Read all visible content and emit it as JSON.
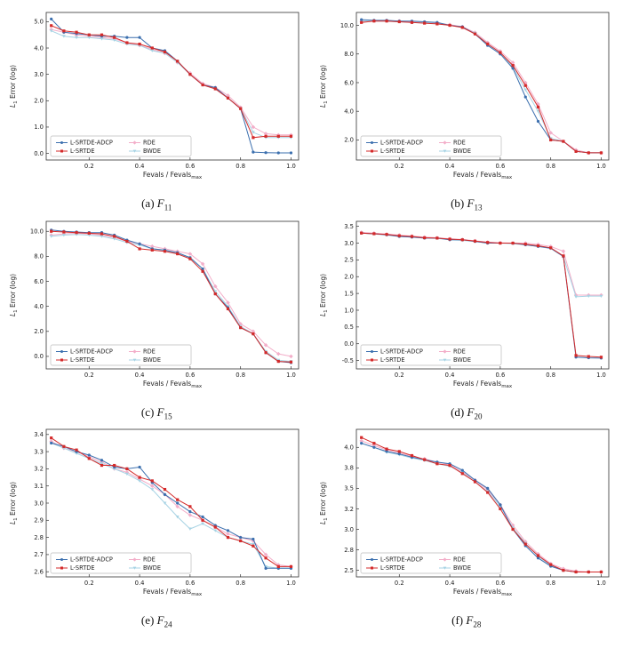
{
  "page": {
    "background": "#ffffff"
  },
  "chart_data": [
    {
      "type": "line",
      "caption": {
        "prefix": "(a)",
        "letter": "F",
        "sub": "11"
      },
      "xlabel": {
        "main": "Fevals / Fevals",
        "sub": "max"
      },
      "ylabel": {
        "pre": "L",
        "sub": "1",
        "post": " Error (log)"
      },
      "xlim": [
        0.03,
        1.03
      ],
      "ylim": [
        -0.25,
        5.35
      ],
      "xticks": [
        0.2,
        0.4,
        0.6,
        0.8,
        1.0
      ],
      "ytick_vals": [
        0.0,
        1.0,
        2.0,
        3.0,
        4.0,
        5.0
      ],
      "ytick_labels": [
        "0.0",
        "1.0",
        "2.0",
        "3.0",
        "4.0",
        "5.0"
      ],
      "x": [
        0.05,
        0.1,
        0.15,
        0.2,
        0.25,
        0.3,
        0.35,
        0.4,
        0.45,
        0.5,
        0.55,
        0.6,
        0.65,
        0.7,
        0.75,
        0.8,
        0.85,
        0.9,
        0.95,
        1.0
      ],
      "legend_pos": "lower-left",
      "draw_order": [
        2,
        3,
        0,
        1
      ],
      "series": [
        {
          "name": "L-SRTDE-ADCP",
          "color": "#3b6fae",
          "marker": "circle",
          "values": [
            5.1,
            4.6,
            4.55,
            4.5,
            4.45,
            4.45,
            4.4,
            4.4,
            4.0,
            3.9,
            3.5,
            3.0,
            2.6,
            2.5,
            2.1,
            1.7,
            0.05,
            0.03,
            0.02,
            0.02
          ]
        },
        {
          "name": "L-SRTDE",
          "color": "#d42a2a",
          "marker": "square",
          "values": [
            4.85,
            4.65,
            4.6,
            4.5,
            4.5,
            4.4,
            4.2,
            4.15,
            4.0,
            3.85,
            3.5,
            3.0,
            2.6,
            2.45,
            2.1,
            1.7,
            0.6,
            0.65,
            0.65,
            0.65
          ]
        },
        {
          "name": "RDE",
          "color": "#f3aec9",
          "marker": "diamond",
          "values": [
            4.7,
            4.6,
            4.5,
            4.45,
            4.4,
            4.35,
            4.2,
            4.1,
            3.95,
            3.8,
            3.45,
            3.05,
            2.65,
            2.5,
            2.2,
            1.75,
            1.0,
            0.75,
            0.7,
            0.7
          ]
        },
        {
          "name": "BWDE",
          "color": "#a7d3e4",
          "marker": "triangle",
          "values": [
            4.65,
            4.45,
            4.4,
            4.4,
            4.35,
            4.3,
            4.15,
            4.1,
            3.9,
            3.8,
            3.45,
            3.0,
            2.6,
            2.45,
            2.1,
            1.7,
            0.8,
            0.6,
            0.6,
            0.6
          ]
        }
      ]
    },
    {
      "type": "line",
      "caption": {
        "prefix": "(b)",
        "letter": "F",
        "sub": "13"
      },
      "xlabel": {
        "main": "Fevals / Fevals",
        "sub": "max"
      },
      "ylabel": {
        "pre": "L",
        "sub": "1",
        "post": " Error (log)"
      },
      "xlim": [
        0.03,
        1.03
      ],
      "ylim": [
        0.6,
        10.9
      ],
      "xticks": [
        0.2,
        0.4,
        0.6,
        0.8,
        1.0
      ],
      "ytick_vals": [
        2.0,
        4.0,
        6.0,
        8.0,
        10.0
      ],
      "ytick_labels": [
        "2.0",
        "4.0",
        "6.0",
        "8.0",
        "10.0"
      ],
      "x": [
        0.05,
        0.1,
        0.15,
        0.2,
        0.25,
        0.3,
        0.35,
        0.4,
        0.45,
        0.5,
        0.55,
        0.6,
        0.65,
        0.7,
        0.75,
        0.8,
        0.85,
        0.9,
        0.95,
        1.0
      ],
      "legend_pos": "lower-left",
      "draw_order": [
        2,
        3,
        0,
        1
      ],
      "series": [
        {
          "name": "L-SRTDE-ADCP",
          "color": "#3b6fae",
          "marker": "circle",
          "values": [
            10.4,
            10.35,
            10.35,
            10.3,
            10.3,
            10.25,
            10.2,
            10.0,
            9.9,
            9.4,
            8.6,
            8.0,
            7.0,
            5.0,
            3.3,
            2.0,
            1.9,
            1.2,
            1.1,
            1.1
          ]
        },
        {
          "name": "L-SRTDE",
          "color": "#d42a2a",
          "marker": "square",
          "values": [
            10.2,
            10.3,
            10.3,
            10.25,
            10.2,
            10.15,
            10.1,
            10.0,
            9.85,
            9.4,
            8.7,
            8.1,
            7.2,
            5.8,
            4.3,
            2.0,
            1.9,
            1.2,
            1.1,
            1.1
          ]
        },
        {
          "name": "RDE",
          "color": "#f3aec9",
          "marker": "diamond",
          "values": [
            10.25,
            10.3,
            10.3,
            10.3,
            10.25,
            10.2,
            10.15,
            10.05,
            9.9,
            9.5,
            8.8,
            8.2,
            7.4,
            6.0,
            4.5,
            2.5,
            1.9,
            1.3,
            1.1,
            1.1
          ]
        },
        {
          "name": "BWDE",
          "color": "#a7d3e4",
          "marker": "triangle",
          "values": [
            10.3,
            10.3,
            10.3,
            10.25,
            10.2,
            10.2,
            10.1,
            10.0,
            9.85,
            9.45,
            8.7,
            8.1,
            7.1,
            5.5,
            4.0,
            2.1,
            1.9,
            1.2,
            1.1,
            1.1
          ]
        }
      ]
    },
    {
      "type": "line",
      "caption": {
        "prefix": "(c)",
        "letter": "F",
        "sub": "15"
      },
      "xlabel": {
        "main": "Fevals / Fevals",
        "sub": "max"
      },
      "ylabel": {
        "pre": "L",
        "sub": "1",
        "post": " Error (log)"
      },
      "xlim": [
        0.03,
        1.03
      ],
      "ylim": [
        -1.0,
        10.8
      ],
      "xticks": [
        0.2,
        0.4,
        0.6,
        0.8,
        1.0
      ],
      "ytick_vals": [
        0.0,
        2.0,
        4.0,
        6.0,
        8.0,
        10.0
      ],
      "ytick_labels": [
        "0.0",
        "2.0",
        "4.0",
        "6.0",
        "8.0",
        "10.0"
      ],
      "x": [
        0.05,
        0.1,
        0.15,
        0.2,
        0.25,
        0.3,
        0.35,
        0.4,
        0.45,
        0.5,
        0.55,
        0.6,
        0.65,
        0.7,
        0.75,
        0.8,
        0.85,
        0.9,
        0.95,
        1.0
      ],
      "legend_pos": "lower-left",
      "draw_order": [
        2,
        3,
        0,
        1
      ],
      "series": [
        {
          "name": "L-SRTDE-ADCP",
          "color": "#3b6fae",
          "marker": "circle",
          "values": [
            10.1,
            10.0,
            9.95,
            9.9,
            9.9,
            9.7,
            9.3,
            9.0,
            8.6,
            8.5,
            8.3,
            7.9,
            7.0,
            5.0,
            3.9,
            2.3,
            1.8,
            0.3,
            -0.4,
            -0.5
          ]
        },
        {
          "name": "L-SRTDE",
          "color": "#d42a2a",
          "marker": "square",
          "values": [
            10.0,
            9.95,
            9.9,
            9.85,
            9.8,
            9.6,
            9.2,
            8.6,
            8.5,
            8.4,
            8.2,
            7.8,
            6.8,
            5.0,
            3.8,
            2.3,
            1.8,
            0.3,
            -0.4,
            -0.45
          ]
        },
        {
          "name": "RDE",
          "color": "#f3aec9",
          "marker": "diamond",
          "values": [
            9.7,
            9.8,
            9.85,
            9.8,
            9.7,
            9.5,
            9.2,
            9.0,
            8.8,
            8.6,
            8.4,
            8.2,
            7.4,
            5.6,
            4.3,
            2.6,
            2.0,
            0.9,
            0.2,
            0.0
          ]
        },
        {
          "name": "BWDE",
          "color": "#a7d3e4",
          "marker": "triangle",
          "values": [
            9.6,
            9.7,
            9.75,
            9.7,
            9.6,
            9.4,
            9.1,
            8.9,
            8.6,
            8.5,
            8.2,
            7.9,
            7.0,
            5.2,
            4.0,
            2.4,
            1.8,
            0.4,
            -0.3,
            -0.4
          ]
        }
      ]
    },
    {
      "type": "line",
      "caption": {
        "prefix": "(d)",
        "letter": "F",
        "sub": "20"
      },
      "xlabel": {
        "main": "Fevals / Fevals",
        "sub": "max"
      },
      "ylabel": {
        "pre": "L",
        "sub": "1",
        "post": " Error (log)"
      },
      "xlim": [
        0.03,
        1.03
      ],
      "ylim": [
        -0.75,
        3.65
      ],
      "xticks": [
        0.2,
        0.4,
        0.6,
        0.8,
        1.0
      ],
      "ytick_vals": [
        -0.5,
        0.0,
        0.5,
        1.0,
        1.5,
        2.0,
        2.5,
        3.0,
        3.5
      ],
      "ytick_labels": [
        "-0.5",
        "0.0",
        "0.5",
        "1.0",
        "1.5",
        "2.0",
        "2.5",
        "3.0",
        "3.5"
      ],
      "x": [
        0.05,
        0.1,
        0.15,
        0.2,
        0.25,
        0.3,
        0.35,
        0.4,
        0.45,
        0.5,
        0.55,
        0.6,
        0.65,
        0.7,
        0.75,
        0.8,
        0.85,
        0.9,
        0.95,
        1.0
      ],
      "legend_pos": "lower-left",
      "draw_order": [
        2,
        3,
        0,
        1
      ],
      "series": [
        {
          "name": "L-SRTDE-ADCP",
          "color": "#3b6fae",
          "marker": "circle",
          "values": [
            3.3,
            3.28,
            3.25,
            3.2,
            3.18,
            3.15,
            3.15,
            3.1,
            3.1,
            3.05,
            3.0,
            3.0,
            3.0,
            2.95,
            2.9,
            2.85,
            2.6,
            -0.4,
            -0.42,
            -0.43
          ]
        },
        {
          "name": "L-SRTDE",
          "color": "#d42a2a",
          "marker": "square",
          "values": [
            3.3,
            3.28,
            3.26,
            3.22,
            3.2,
            3.16,
            3.15,
            3.12,
            3.1,
            3.06,
            3.02,
            3.0,
            3.0,
            2.97,
            2.92,
            2.86,
            2.62,
            -0.35,
            -0.38,
            -0.4
          ]
        },
        {
          "name": "RDE",
          "color": "#f3aec9",
          "marker": "diamond",
          "values": [
            3.32,
            3.3,
            3.27,
            3.24,
            3.21,
            3.18,
            3.16,
            3.13,
            3.11,
            3.07,
            3.03,
            3.01,
            3.0,
            3.0,
            2.96,
            2.9,
            2.76,
            1.45,
            1.45,
            1.45
          ]
        },
        {
          "name": "BWDE",
          "color": "#a7d3e4",
          "marker": "triangle",
          "values": [
            3.3,
            3.27,
            3.24,
            3.2,
            3.18,
            3.15,
            3.14,
            3.1,
            3.08,
            3.05,
            3.0,
            3.0,
            2.98,
            2.95,
            2.9,
            2.84,
            2.6,
            1.4,
            1.42,
            1.42
          ]
        }
      ]
    },
    {
      "type": "line",
      "caption": {
        "prefix": "(e)",
        "letter": "F",
        "sub": "24"
      },
      "xlabel": {
        "main": "Fevals / Fevals",
        "sub": "max"
      },
      "ylabel": {
        "pre": "L",
        "sub": "1",
        "post": " Error (log)"
      },
      "xlim": [
        0.03,
        1.03
      ],
      "ylim": [
        2.57,
        3.43
      ],
      "xticks": [
        0.2,
        0.4,
        0.6,
        0.8,
        1.0
      ],
      "ytick_vals": [
        2.6,
        2.7,
        2.8,
        2.9,
        3.0,
        3.1,
        3.2,
        3.3,
        3.4
      ],
      "ytick_labels": [
        "2.6",
        "2.7",
        "2.8",
        "2.9",
        "3.0",
        "3.1",
        "3.2",
        "3.3",
        "3.4"
      ],
      "x": [
        0.05,
        0.1,
        0.15,
        0.2,
        0.25,
        0.3,
        0.35,
        0.4,
        0.45,
        0.5,
        0.55,
        0.6,
        0.65,
        0.7,
        0.75,
        0.8,
        0.85,
        0.9,
        0.95,
        1.0
      ],
      "legend_pos": "lower-left",
      "draw_order": [
        2,
        3,
        0,
        1
      ],
      "series": [
        {
          "name": "L-SRTDE-ADCP",
          "color": "#3b6fae",
          "marker": "circle",
          "values": [
            3.35,
            3.33,
            3.3,
            3.28,
            3.25,
            3.21,
            3.2,
            3.21,
            3.12,
            3.05,
            3.0,
            2.95,
            2.92,
            2.87,
            2.84,
            2.8,
            2.79,
            2.62,
            2.62,
            2.62
          ]
        },
        {
          "name": "L-SRTDE",
          "color": "#d42a2a",
          "marker": "square",
          "values": [
            3.38,
            3.33,
            3.31,
            3.26,
            3.22,
            3.22,
            3.2,
            3.15,
            3.13,
            3.08,
            3.02,
            2.98,
            2.9,
            2.86,
            2.8,
            2.78,
            2.75,
            2.68,
            2.63,
            2.63
          ]
        },
        {
          "name": "RDE",
          "color": "#f3aec9",
          "marker": "diamond",
          "values": [
            3.36,
            3.32,
            3.3,
            3.27,
            3.24,
            3.2,
            3.18,
            3.14,
            3.1,
            3.05,
            2.98,
            2.93,
            2.9,
            2.86,
            2.82,
            2.8,
            2.78,
            2.7,
            2.64,
            2.63
          ]
        },
        {
          "name": "BWDE",
          "color": "#a7d3e4",
          "marker": "triangle",
          "values": [
            3.35,
            3.32,
            3.29,
            3.26,
            3.23,
            3.2,
            3.17,
            3.13,
            3.08,
            3.0,
            2.92,
            2.85,
            2.88,
            2.84,
            2.8,
            2.78,
            2.76,
            2.63,
            2.62,
            2.62
          ]
        }
      ]
    },
    {
      "type": "line",
      "caption": {
        "prefix": "(f)",
        "letter": "F",
        "sub": "28"
      },
      "xlabel": {
        "main": "Fevals / Fevals",
        "sub": "max"
      },
      "ylabel": {
        "pre": "L",
        "sub": "1",
        "post": " Error (log)"
      },
      "xlim": [
        0.03,
        1.03
      ],
      "ylim": [
        2.42,
        4.22
      ],
      "xticks": [
        0.2,
        0.4,
        0.6,
        0.8,
        1.0
      ],
      "ytick_vals": [
        2.5,
        2.75,
        3.0,
        3.25,
        3.5,
        3.75,
        4.0
      ],
      "ytick_labels": [
        "2.5",
        "2.8",
        "3.0",
        "3.2",
        "3.5",
        "3.8",
        "4.0"
      ],
      "x": [
        0.05,
        0.1,
        0.15,
        0.2,
        0.25,
        0.3,
        0.35,
        0.4,
        0.45,
        0.5,
        0.55,
        0.6,
        0.65,
        0.7,
        0.75,
        0.8,
        0.85,
        0.9,
        0.95,
        1.0
      ],
      "legend_pos": "lower-left",
      "draw_order": [
        2,
        3,
        0,
        1
      ],
      "series": [
        {
          "name": "L-SRTDE-ADCP",
          "color": "#3b6fae",
          "marker": "circle",
          "values": [
            4.05,
            4.0,
            3.95,
            3.92,
            3.88,
            3.85,
            3.82,
            3.8,
            3.72,
            3.6,
            3.5,
            3.3,
            3.0,
            2.8,
            2.65,
            2.55,
            2.5,
            2.48,
            2.48,
            2.48
          ]
        },
        {
          "name": "L-SRTDE",
          "color": "#d42a2a",
          "marker": "square",
          "values": [
            4.12,
            4.05,
            3.98,
            3.95,
            3.9,
            3.85,
            3.8,
            3.78,
            3.68,
            3.58,
            3.45,
            3.25,
            3.0,
            2.82,
            2.68,
            2.57,
            2.5,
            2.48,
            2.48,
            2.48
          ]
        },
        {
          "name": "RDE",
          "color": "#f3aec9",
          "marker": "diamond",
          "values": [
            4.08,
            4.02,
            3.97,
            3.93,
            3.89,
            3.86,
            3.82,
            3.79,
            3.7,
            3.6,
            3.48,
            3.3,
            3.05,
            2.85,
            2.7,
            2.58,
            2.52,
            2.49,
            2.48,
            2.48
          ]
        },
        {
          "name": "BWDE",
          "color": "#a7d3e4",
          "marker": "triangle",
          "values": [
            4.05,
            4.0,
            3.94,
            3.91,
            3.87,
            3.84,
            3.8,
            3.77,
            3.69,
            3.58,
            3.46,
            3.28,
            3.02,
            2.83,
            2.67,
            2.56,
            2.5,
            2.48,
            2.48,
            2.48
          ]
        }
      ]
    }
  ]
}
